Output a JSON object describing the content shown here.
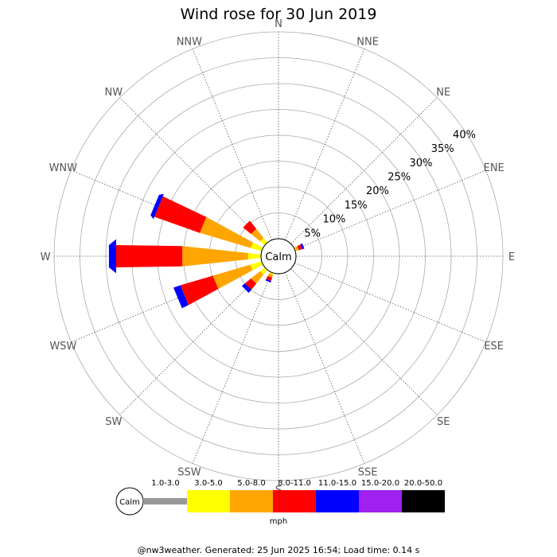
{
  "chart_data": {
    "type": "wind-rose",
    "title": "Wind rose for 30 Jun 2019",
    "directions": [
      "N",
      "NNE",
      "NE",
      "ENE",
      "E",
      "ESE",
      "SE",
      "SSE",
      "S",
      "SSW",
      "SW",
      "WSW",
      "W",
      "WNW",
      "NW",
      "NNW"
    ],
    "ring_labels": [
      "5%",
      "10%",
      "15%",
      "20%",
      "25%",
      "30%",
      "35%",
      "40%"
    ],
    "ring_values": [
      5,
      10,
      15,
      20,
      25,
      30,
      35,
      40
    ],
    "calm_label": "Calm",
    "unit": "mph",
    "grid": true,
    "speed_bins": [
      {
        "label": "1.0-3.0",
        "color": "#999999"
      },
      {
        "label": "3.0-5.0",
        "color": "#ffff00"
      },
      {
        "label": "5.0-8.0",
        "color": "#ffa500"
      },
      {
        "label": "8.0-11.0",
        "color": "#ff0000"
      },
      {
        "label": "11.0-15.0",
        "color": "#0000ff"
      },
      {
        "label": "15.0-20.0",
        "color": "#a020f0"
      },
      {
        "label": "20.0-50.0",
        "color": "#000000"
      }
    ],
    "series": [
      {
        "direction": "ENE",
        "values": [
          0,
          0.2,
          0.5,
          0.7,
          0.4,
          0,
          0
        ]
      },
      {
        "direction": "NW",
        "values": [
          0,
          1.2,
          2.2,
          2.0,
          0,
          0,
          0
        ]
      },
      {
        "direction": "WNW",
        "values": [
          0,
          2.2,
          10.2,
          9.3,
          0.8,
          0,
          0
        ]
      },
      {
        "direction": "W",
        "values": [
          0,
          2.5,
          12.7,
          12.8,
          1.4,
          0,
          0
        ]
      },
      {
        "direction": "WSW",
        "values": [
          0,
          2.3,
          7.5,
          6.5,
          1.4,
          0,
          0
        ]
      },
      {
        "direction": "SW",
        "values": [
          0,
          1.2,
          2.2,
          1.5,
          0.8,
          0,
          0
        ]
      },
      {
        "direction": "SSW",
        "values": [
          0,
          0.3,
          0.6,
          0.7,
          0.3,
          0,
          0
        ]
      }
    ]
  },
  "footer": "@nw3weather. Generated: 25 Jun 2025 16:54; Load time: 0.14 s"
}
